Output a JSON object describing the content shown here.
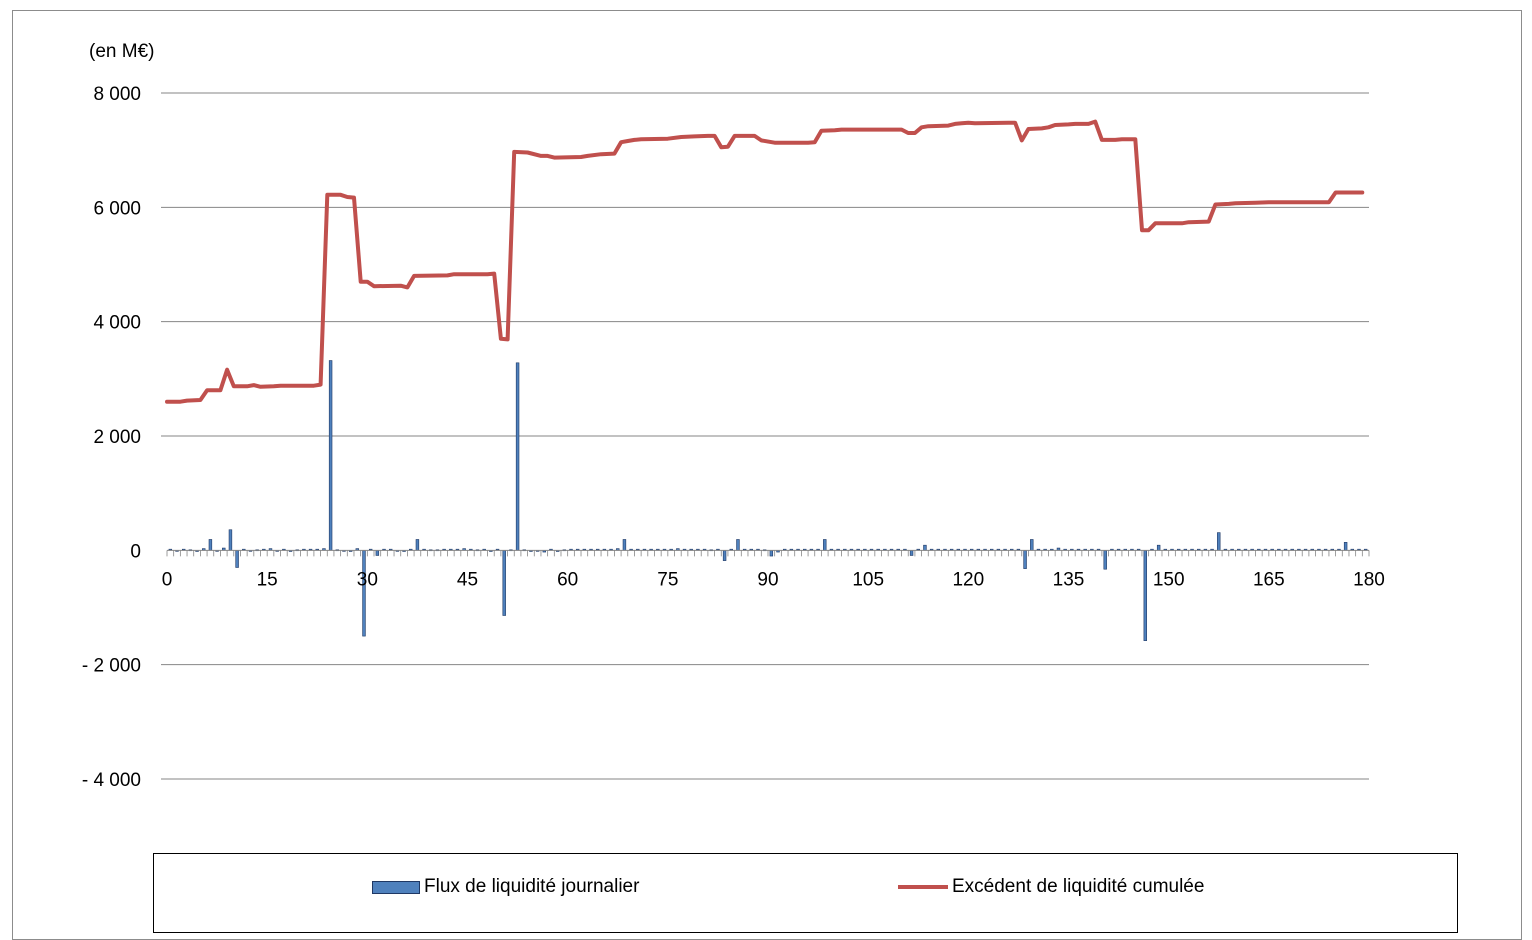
{
  "chart_data": {
    "type": "bar+line",
    "unit_label": "(en M€)",
    "ylim": [
      -4000,
      8000
    ],
    "yticks": [
      8000,
      6000,
      4000,
      2000,
      0,
      -2000,
      -4000
    ],
    "ytick_labels": [
      "8 000",
      "6 000",
      "4 000",
      "2 000",
      "0",
      "- 2 000",
      "- 4 000"
    ],
    "xlim": [
      0,
      180
    ],
    "xticks": [
      0,
      15,
      30,
      45,
      60,
      75,
      90,
      105,
      120,
      135,
      150,
      165,
      180
    ],
    "xtick_labels": [
      "0",
      "15",
      "30",
      "45",
      "60",
      "75",
      "90",
      "105",
      "120",
      "135",
      "150",
      "165",
      "180"
    ],
    "grid": "horizontal",
    "legend_position": "bottom",
    "series": [
      {
        "name": "Flux de liquidité journalier",
        "type": "bar",
        "color": "#4f81bd",
        "points": [
          [
            0,
            20
          ],
          [
            1,
            -10
          ],
          [
            2,
            20
          ],
          [
            3,
            10
          ],
          [
            4,
            -20
          ],
          [
            5,
            30
          ],
          [
            6,
            190
          ],
          [
            7,
            -10
          ],
          [
            8,
            40
          ],
          [
            9,
            360
          ],
          [
            10,
            -300
          ],
          [
            11,
            20
          ],
          [
            12,
            -10
          ],
          [
            13,
            10
          ],
          [
            14,
            20
          ],
          [
            15,
            30
          ],
          [
            16,
            -10
          ],
          [
            17,
            20
          ],
          [
            18,
            -20
          ],
          [
            19,
            10
          ],
          [
            20,
            20
          ],
          [
            21,
            20
          ],
          [
            22,
            20
          ],
          [
            23,
            30
          ],
          [
            24,
            3320
          ],
          [
            25,
            10
          ],
          [
            26,
            -10
          ],
          [
            27,
            -20
          ],
          [
            28,
            30
          ],
          [
            29,
            -1500
          ],
          [
            30,
            20
          ],
          [
            31,
            -90
          ],
          [
            32,
            20
          ],
          [
            33,
            20
          ],
          [
            34,
            -10
          ],
          [
            35,
            -20
          ],
          [
            36,
            20
          ],
          [
            37,
            190
          ],
          [
            38,
            20
          ],
          [
            39,
            10
          ],
          [
            40,
            10
          ],
          [
            41,
            20
          ],
          [
            42,
            20
          ],
          [
            43,
            20
          ],
          [
            44,
            30
          ],
          [
            45,
            20
          ],
          [
            46,
            10
          ],
          [
            47,
            20
          ],
          [
            48,
            -20
          ],
          [
            49,
            20
          ],
          [
            50,
            -1140
          ],
          [
            51,
            10
          ],
          [
            52,
            3280
          ],
          [
            53,
            10
          ],
          [
            54,
            -20
          ],
          [
            55,
            -10
          ],
          [
            56,
            -30
          ],
          [
            57,
            20
          ],
          [
            58,
            -20
          ],
          [
            59,
            10
          ],
          [
            60,
            20
          ],
          [
            61,
            20
          ],
          [
            62,
            20
          ],
          [
            63,
            20
          ],
          [
            64,
            20
          ],
          [
            65,
            20
          ],
          [
            66,
            20
          ],
          [
            67,
            30
          ],
          [
            68,
            190
          ],
          [
            69,
            20
          ],
          [
            70,
            20
          ],
          [
            71,
            20
          ],
          [
            72,
            20
          ],
          [
            73,
            20
          ],
          [
            74,
            20
          ],
          [
            75,
            20
          ],
          [
            76,
            30
          ],
          [
            77,
            20
          ],
          [
            78,
            20
          ],
          [
            79,
            20
          ],
          [
            80,
            20
          ],
          [
            81,
            10
          ],
          [
            82,
            20
          ],
          [
            83,
            -180
          ],
          [
            84,
            20
          ],
          [
            85,
            190
          ],
          [
            86,
            20
          ],
          [
            87,
            20
          ],
          [
            88,
            20
          ],
          [
            89,
            10
          ],
          [
            90,
            -100
          ],
          [
            91,
            -30
          ],
          [
            92,
            20
          ],
          [
            93,
            20
          ],
          [
            94,
            20
          ],
          [
            95,
            20
          ],
          [
            96,
            20
          ],
          [
            97,
            20
          ],
          [
            98,
            190
          ],
          [
            99,
            20
          ],
          [
            100,
            20
          ],
          [
            101,
            20
          ],
          [
            102,
            20
          ],
          [
            103,
            20
          ],
          [
            104,
            20
          ],
          [
            105,
            20
          ],
          [
            106,
            20
          ],
          [
            107,
            20
          ],
          [
            108,
            20
          ],
          [
            109,
            20
          ],
          [
            110,
            20
          ],
          [
            111,
            -90
          ],
          [
            112,
            20
          ],
          [
            113,
            90
          ],
          [
            114,
            20
          ],
          [
            115,
            20
          ],
          [
            116,
            20
          ],
          [
            117,
            20
          ],
          [
            118,
            20
          ],
          [
            119,
            20
          ],
          [
            120,
            20
          ],
          [
            121,
            20
          ],
          [
            122,
            20
          ],
          [
            123,
            20
          ],
          [
            124,
            20
          ],
          [
            125,
            20
          ],
          [
            126,
            20
          ],
          [
            127,
            20
          ],
          [
            128,
            -320
          ],
          [
            129,
            190
          ],
          [
            130,
            20
          ],
          [
            131,
            20
          ],
          [
            132,
            20
          ],
          [
            133,
            40
          ],
          [
            134,
            20
          ],
          [
            135,
            20
          ],
          [
            136,
            20
          ],
          [
            137,
            20
          ],
          [
            138,
            20
          ],
          [
            139,
            20
          ],
          [
            140,
            -330
          ],
          [
            141,
            20
          ],
          [
            142,
            20
          ],
          [
            143,
            20
          ],
          [
            144,
            20
          ],
          [
            145,
            20
          ],
          [
            146,
            -1580
          ],
          [
            147,
            20
          ],
          [
            148,
            90
          ],
          [
            149,
            20
          ],
          [
            150,
            20
          ],
          [
            151,
            20
          ],
          [
            152,
            20
          ],
          [
            153,
            20
          ],
          [
            154,
            20
          ],
          [
            155,
            20
          ],
          [
            156,
            20
          ],
          [
            157,
            310
          ],
          [
            158,
            20
          ],
          [
            159,
            20
          ],
          [
            160,
            20
          ],
          [
            161,
            20
          ],
          [
            162,
            20
          ],
          [
            163,
            20
          ],
          [
            164,
            20
          ],
          [
            165,
            20
          ],
          [
            166,
            20
          ],
          [
            167,
            20
          ],
          [
            168,
            20
          ],
          [
            169,
            20
          ],
          [
            170,
            20
          ],
          [
            171,
            20
          ],
          [
            172,
            20
          ],
          [
            173,
            20
          ],
          [
            174,
            20
          ],
          [
            175,
            20
          ],
          [
            176,
            140
          ],
          [
            177,
            20
          ],
          [
            178,
            20
          ],
          [
            179,
            20
          ]
        ]
      },
      {
        "name": "Excédent de liquidité cumulée",
        "type": "line",
        "color": "#c0504d",
        "points": [
          [
            0,
            2600
          ],
          [
            2,
            2600
          ],
          [
            3,
            2620
          ],
          [
            5,
            2630
          ],
          [
            6,
            2800
          ],
          [
            8,
            2800
          ],
          [
            9,
            3160
          ],
          [
            10,
            2870
          ],
          [
            12,
            2870
          ],
          [
            13,
            2890
          ],
          [
            14,
            2860
          ],
          [
            16,
            2870
          ],
          [
            17,
            2880
          ],
          [
            22,
            2880
          ],
          [
            23,
            2900
          ],
          [
            24,
            6220
          ],
          [
            26,
            6220
          ],
          [
            27,
            6180
          ],
          [
            28,
            6170
          ],
          [
            29,
            4700
          ],
          [
            30,
            4700
          ],
          [
            31,
            4620
          ],
          [
            35,
            4630
          ],
          [
            36,
            4600
          ],
          [
            37,
            4800
          ],
          [
            42,
            4810
          ],
          [
            43,
            4830
          ],
          [
            48,
            4830
          ],
          [
            49,
            4840
          ],
          [
            50,
            3700
          ],
          [
            51,
            3690
          ],
          [
            52,
            6970
          ],
          [
            54,
            6960
          ],
          [
            56,
            6900
          ],
          [
            57,
            6900
          ],
          [
            58,
            6870
          ],
          [
            62,
            6880
          ],
          [
            63,
            6900
          ],
          [
            65,
            6930
          ],
          [
            67,
            6940
          ],
          [
            68,
            7140
          ],
          [
            69,
            7160
          ],
          [
            70,
            7180
          ],
          [
            71,
            7190
          ],
          [
            75,
            7200
          ],
          [
            77,
            7230
          ],
          [
            79,
            7240
          ],
          [
            81,
            7250
          ],
          [
            82,
            7250
          ],
          [
            83,
            7050
          ],
          [
            84,
            7060
          ],
          [
            85,
            7250
          ],
          [
            88,
            7250
          ],
          [
            89,
            7170
          ],
          [
            91,
            7130
          ],
          [
            96,
            7130
          ],
          [
            97,
            7140
          ],
          [
            98,
            7340
          ],
          [
            100,
            7350
          ],
          [
            101,
            7360
          ],
          [
            110,
            7360
          ],
          [
            111,
            7300
          ],
          [
            112,
            7300
          ],
          [
            113,
            7400
          ],
          [
            114,
            7420
          ],
          [
            117,
            7430
          ],
          [
            118,
            7460
          ],
          [
            119,
            7470
          ],
          [
            120,
            7480
          ],
          [
            121,
            7470
          ],
          [
            126,
            7480
          ],
          [
            127,
            7480
          ],
          [
            128,
            7170
          ],
          [
            129,
            7370
          ],
          [
            131,
            7380
          ],
          [
            132,
            7400
          ],
          [
            133,
            7440
          ],
          [
            135,
            7450
          ],
          [
            136,
            7460
          ],
          [
            138,
            7460
          ],
          [
            139,
            7500
          ],
          [
            140,
            7180
          ],
          [
            142,
            7180
          ],
          [
            143,
            7190
          ],
          [
            145,
            7190
          ],
          [
            146,
            5600
          ],
          [
            147,
            5600
          ],
          [
            148,
            5720
          ],
          [
            152,
            5720
          ],
          [
            153,
            5740
          ],
          [
            156,
            5750
          ],
          [
            157,
            6050
          ],
          [
            159,
            6060
          ],
          [
            160,
            6070
          ],
          [
            163,
            6080
          ],
          [
            165,
            6090
          ],
          [
            167,
            6090
          ],
          [
            174,
            6090
          ],
          [
            175,
            6260
          ],
          [
            177,
            6260
          ],
          [
            179,
            6260
          ]
        ]
      }
    ]
  }
}
